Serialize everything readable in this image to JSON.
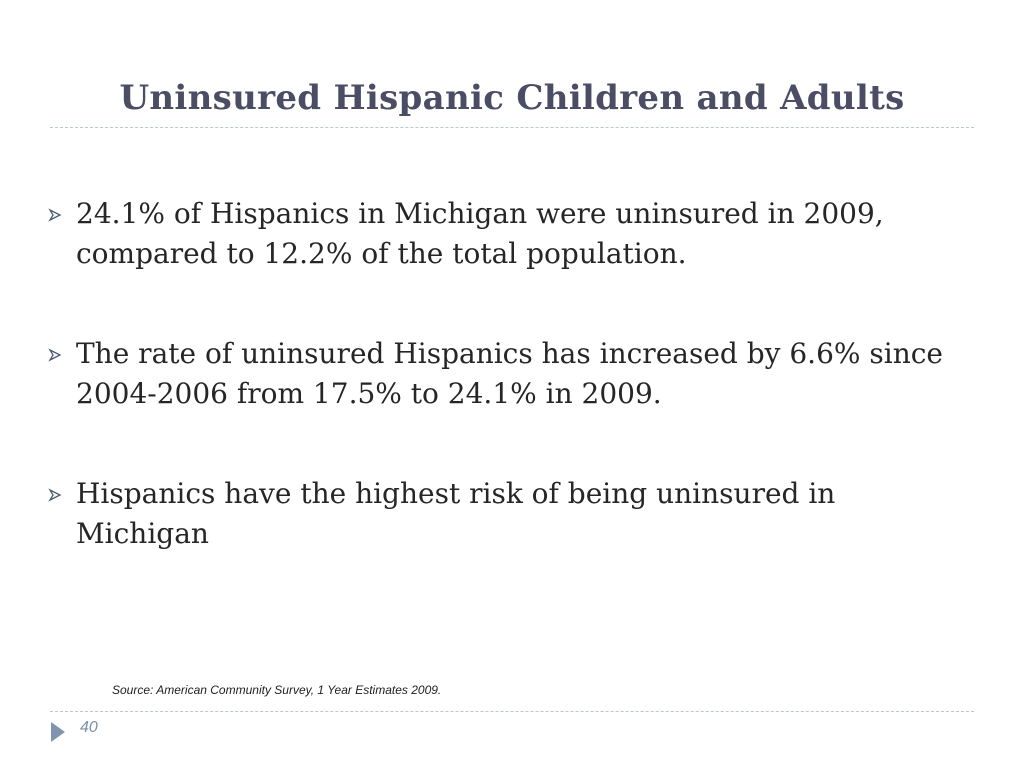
{
  "slide": {
    "title": "Uninsured Hispanic Children and Adults",
    "bullets": [
      "24.1% of Hispanics in Michigan were uninsured in 2009, compared to 12.2% of the total population.",
      "The rate of uninsured Hispanics has increased by 6.6% since 2004-2006 from 17.5% to 24.1% in 2009.",
      "Hispanics have the highest risk of being uninsured in Michigan"
    ],
    "source": "Source:  American Community Survey, 1 Year Estimates 2009.",
    "page_number": "40"
  },
  "colors": {
    "title": "#4a4d63",
    "body_text": "#262626",
    "accent": "#7a8fa3",
    "rule": "#b9c7d3"
  },
  "icons": {
    "bullet": "arrow-bullet-icon",
    "nav": "triangle-right-icon"
  }
}
